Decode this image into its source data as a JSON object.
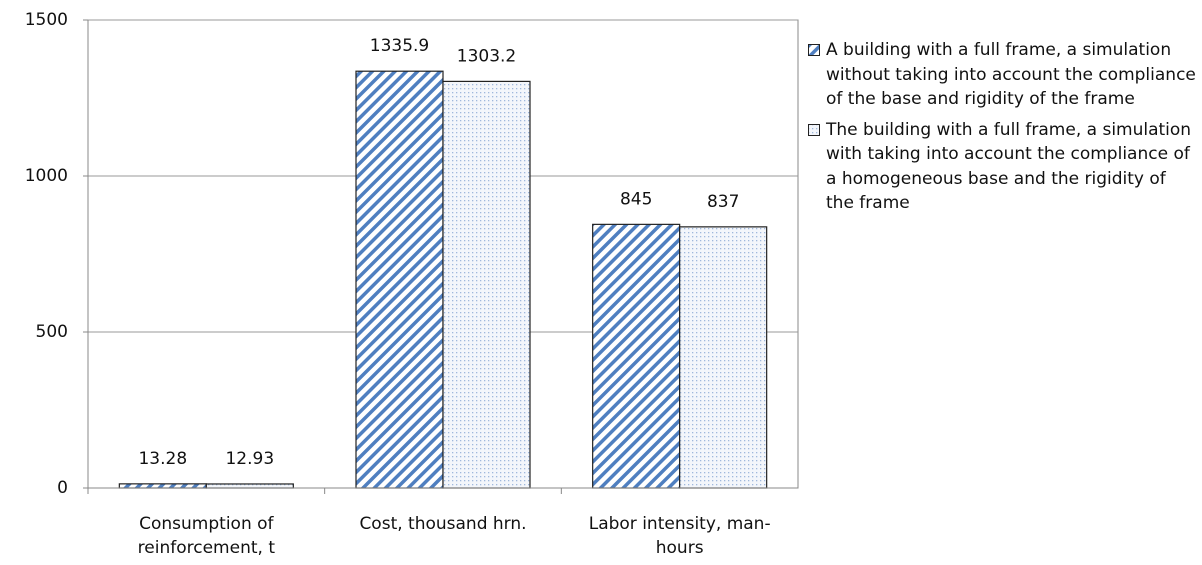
{
  "chart_data": {
    "type": "bar",
    "categories": [
      "Consumption of reinforcement, t",
      "Cost, thousand hrn.",
      "Labor intensity, man-hours"
    ],
    "series": [
      {
        "name": "A building with a full frame, a simulation without taking into account the compliance of the base and rigidity of the frame",
        "color": "#4f7fc0",
        "pattern": "hatch",
        "values": [
          13.28,
          1335.9,
          845
        ]
      },
      {
        "name": "The building with a full frame, a simulation with taking into account the compliance of a homogeneous base and the rigidity of the frame",
        "color": "#9fb8dc",
        "pattern": "dots",
        "values": [
          12.93,
          1303.2,
          837
        ]
      }
    ],
    "ylim": [
      0,
      1500
    ],
    "yticks": [
      0,
      500,
      1000,
      1500
    ],
    "grid": true,
    "legend": "right"
  }
}
